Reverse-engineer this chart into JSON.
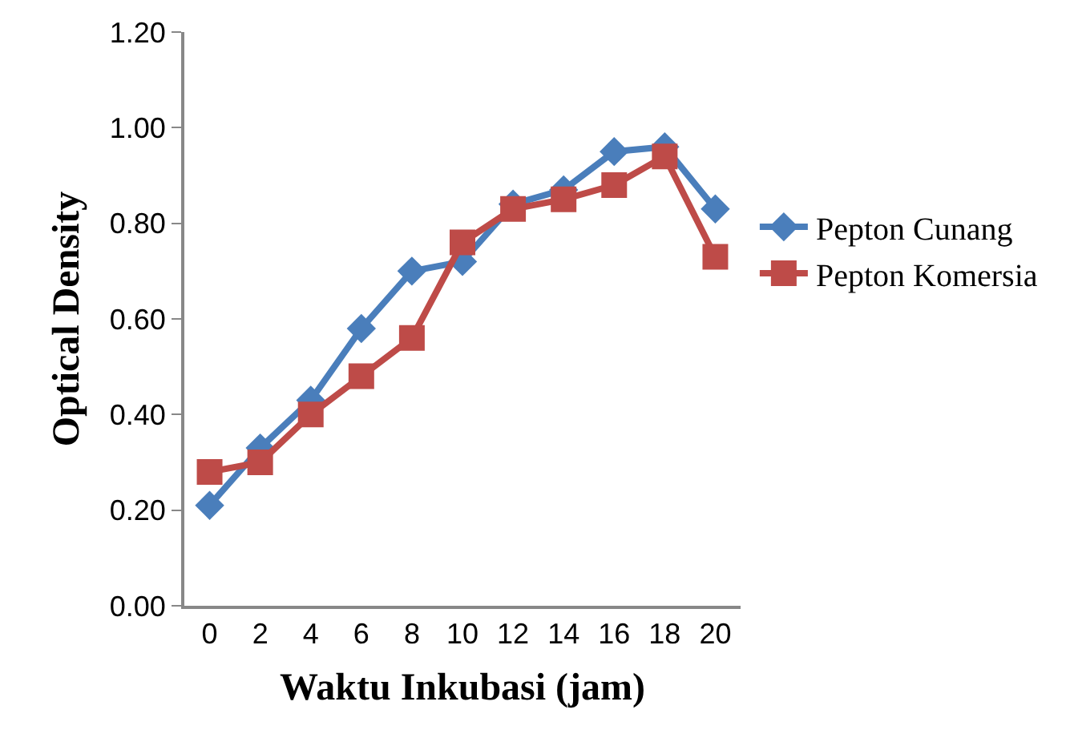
{
  "chart_data": {
    "type": "line",
    "xlabel": "Waktu Inkubasi (jam)",
    "ylabel": "Optical Density",
    "categories": [
      "0",
      "2",
      "4",
      "6",
      "8",
      "10",
      "12",
      "14",
      "16",
      "18",
      "20"
    ],
    "series": [
      {
        "name": "Pepton Cunang",
        "color": "#4a7ebb",
        "marker": "diamond",
        "values": [
          0.21,
          0.33,
          0.43,
          0.58,
          0.7,
          0.72,
          0.84,
          0.87,
          0.95,
          0.96,
          0.83
        ]
      },
      {
        "name": "Pepton Komersia",
        "color": "#be4b48",
        "marker": "square",
        "values": [
          0.28,
          0.3,
          0.4,
          0.48,
          0.56,
          0.76,
          0.83,
          0.85,
          0.88,
          0.94,
          0.73
        ]
      }
    ],
    "ylim": [
      0,
      1.2
    ],
    "yticks": [
      {
        "value": 0,
        "label": "0.00"
      },
      {
        "value": 0.2,
        "label": "0.20"
      },
      {
        "value": 0.4,
        "label": "0.40"
      },
      {
        "value": 0.6,
        "label": "0.60"
      },
      {
        "value": 0.8,
        "label": "0.80"
      },
      {
        "value": 1,
        "label": "1.00"
      },
      {
        "value": 1.2,
        "label": "1.20"
      }
    ],
    "grid": false,
    "legend": "right",
    "line_style": "solid"
  }
}
